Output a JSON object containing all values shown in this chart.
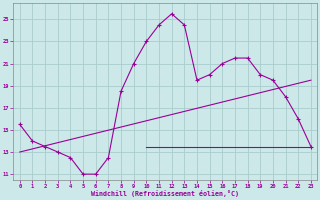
{
  "background_color": "#cce8e8",
  "grid_color": "#aacccc",
  "line_color": "#990099",
  "xlim": [
    -0.5,
    23.5
  ],
  "ylim": [
    10.5,
    26.5
  ],
  "xticks": [
    0,
    1,
    2,
    3,
    4,
    5,
    6,
    7,
    8,
    9,
    10,
    11,
    12,
    13,
    14,
    15,
    16,
    17,
    18,
    19,
    20,
    21,
    22,
    23
  ],
  "yticks": [
    11,
    13,
    15,
    17,
    19,
    21,
    23,
    25
  ],
  "xlabel": "Windchill (Refroidissement éolien,°C)",
  "line1_x": [
    0,
    1,
    2,
    3,
    4,
    5,
    6,
    7,
    8,
    9,
    10,
    11,
    12,
    13,
    14,
    15,
    16,
    17,
    18,
    19,
    20,
    21,
    22,
    23
  ],
  "line1_y": [
    15.5,
    14.0,
    13.5,
    13.0,
    12.5,
    11.0,
    11.0,
    12.5,
    18.5,
    21.0,
    23.0,
    24.5,
    25.5,
    24.5,
    19.5,
    20.0,
    21.0,
    21.5,
    21.5,
    20.0,
    19.5,
    18.0,
    16.0,
    13.5
  ],
  "line2_x": [
    10,
    11,
    12,
    13,
    14,
    15,
    16,
    17,
    18,
    19,
    20,
    21,
    22,
    23
  ],
  "line2_y": [
    13.5,
    13.5,
    13.5,
    13.5,
    13.5,
    13.5,
    13.5,
    13.5,
    13.5,
    13.5,
    13.5,
    13.5,
    13.5,
    13.5
  ],
  "line3_x": [
    0,
    23
  ],
  "line3_y": [
    13.0,
    19.5
  ]
}
